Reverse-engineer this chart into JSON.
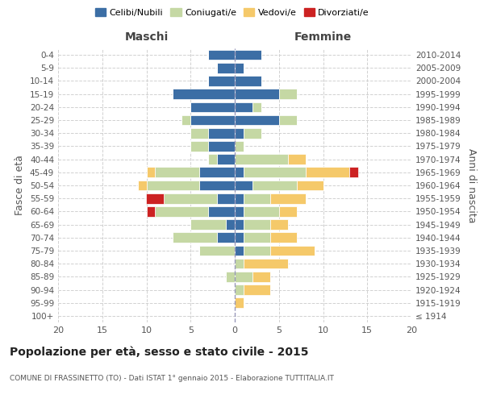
{
  "age_groups": [
    "100+",
    "95-99",
    "90-94",
    "85-89",
    "80-84",
    "75-79",
    "70-74",
    "65-69",
    "60-64",
    "55-59",
    "50-54",
    "45-49",
    "40-44",
    "35-39",
    "30-34",
    "25-29",
    "20-24",
    "15-19",
    "10-14",
    "5-9",
    "0-4"
  ],
  "birth_years": [
    "≤ 1914",
    "1915-1919",
    "1920-1924",
    "1925-1929",
    "1930-1934",
    "1935-1939",
    "1940-1944",
    "1945-1949",
    "1950-1954",
    "1955-1959",
    "1960-1964",
    "1965-1969",
    "1970-1974",
    "1975-1979",
    "1980-1984",
    "1985-1989",
    "1990-1994",
    "1995-1999",
    "2000-2004",
    "2005-2009",
    "2010-2014"
  ],
  "maschi": {
    "celibi": [
      0,
      0,
      0,
      0,
      0,
      0,
      2,
      1,
      3,
      2,
      4,
      4,
      2,
      3,
      3,
      5,
      5,
      7,
      3,
      2,
      3
    ],
    "coniugati": [
      0,
      0,
      0,
      1,
      0,
      4,
      5,
      4,
      6,
      6,
      6,
      5,
      1,
      2,
      2,
      1,
      0,
      0,
      0,
      0,
      0
    ],
    "vedovi": [
      0,
      0,
      0,
      0,
      0,
      0,
      0,
      0,
      0,
      0,
      1,
      1,
      0,
      0,
      0,
      0,
      0,
      0,
      0,
      0,
      0
    ],
    "divorziati": [
      0,
      0,
      0,
      0,
      0,
      0,
      0,
      0,
      1,
      2,
      0,
      0,
      0,
      0,
      0,
      0,
      0,
      0,
      0,
      0,
      0
    ]
  },
  "femmine": {
    "nubili": [
      0,
      0,
      0,
      0,
      0,
      1,
      1,
      1,
      1,
      1,
      2,
      1,
      0,
      0,
      1,
      5,
      2,
      5,
      3,
      1,
      3
    ],
    "coniugate": [
      0,
      0,
      1,
      2,
      1,
      3,
      3,
      3,
      4,
      3,
      5,
      7,
      6,
      1,
      2,
      2,
      1,
      2,
      0,
      0,
      0
    ],
    "vedove": [
      0,
      1,
      3,
      2,
      5,
      5,
      3,
      2,
      2,
      4,
      3,
      5,
      2,
      0,
      0,
      0,
      0,
      0,
      0,
      0,
      0
    ],
    "divorziate": [
      0,
      0,
      0,
      0,
      0,
      0,
      0,
      0,
      0,
      0,
      0,
      1,
      0,
      0,
      0,
      0,
      0,
      0,
      0,
      0,
      0
    ]
  },
  "colors": {
    "celibi_nubili": "#3c6ea5",
    "coniugati": "#c5d8a4",
    "vedovi": "#f5c96a",
    "divorziati": "#cc2222"
  },
  "xlim": 20,
  "title": "Popolazione per età, sesso e stato civile - 2015",
  "subtitle": "COMUNE DI FRASSINETTO (TO) - Dati ISTAT 1° gennaio 2015 - Elaborazione TUTTITALIA.IT",
  "ylabel_left": "Fasce di età",
  "ylabel_right": "Anni di nascita",
  "xlabel_maschi": "Maschi",
  "xlabel_femmine": "Femmine",
  "legend": [
    "Celibi/Nubili",
    "Coniugati/e",
    "Vedovi/e",
    "Divorziati/e"
  ]
}
